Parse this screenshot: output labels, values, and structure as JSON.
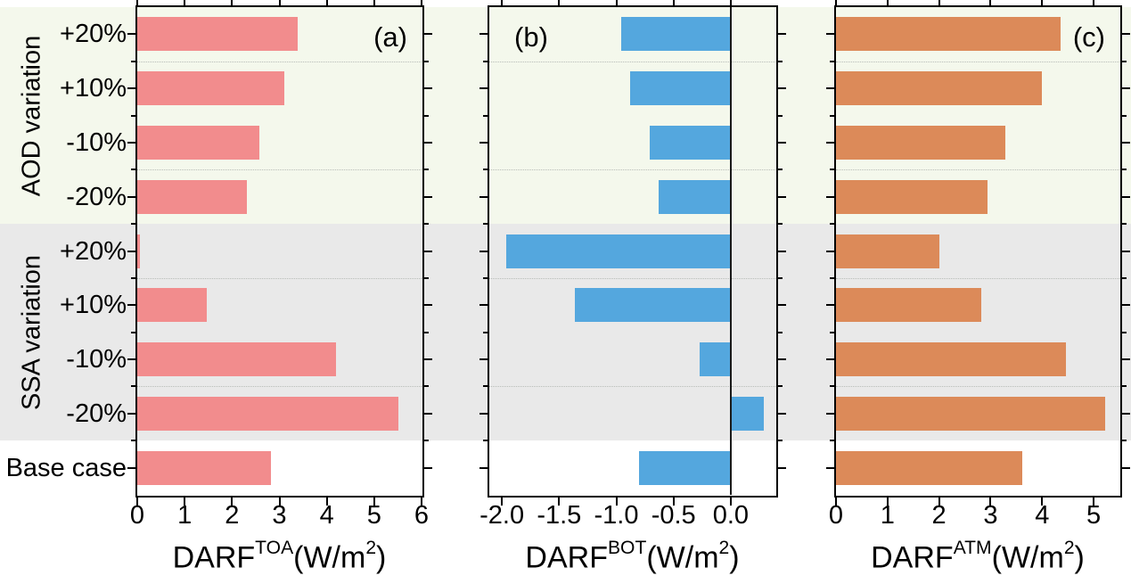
{
  "figure": {
    "background": "#ffffff",
    "axis_color": "#000000",
    "grid_color": "#b8bcb8"
  },
  "layout": {
    "group_bands": [
      {
        "label": "AOD variation",
        "rows": [
          0,
          3
        ],
        "bg": "#f4f8ec"
      },
      {
        "label": "SSA variation",
        "rows": [
          4,
          7
        ],
        "bg": "#e9e9e9"
      },
      {
        "label": "",
        "rows": [
          8,
          8
        ],
        "bg": "#ffffff"
      }
    ],
    "dotted_grid_row_boundaries": [
      1,
      3,
      5,
      7
    ]
  },
  "chart_data": [
    {
      "type": "bar",
      "orientation": "horizontal",
      "panel": "a",
      "panel_label": "(a)",
      "label_corner": "top-right",
      "xlabel_plain": "DARF TOA (W/m2)",
      "xlabel_rich": [
        {
          "t": "DARF"
        },
        {
          "t": "TOA",
          "sup": true
        },
        {
          "t": "(W/m"
        },
        {
          "t": "2",
          "sup": true
        },
        {
          "t": ")"
        }
      ],
      "xlim": [
        0,
        6
      ],
      "xticks": [
        {
          "v": 0,
          "label": "0"
        },
        {
          "v": 1,
          "label": "1"
        },
        {
          "v": 2,
          "label": "2"
        },
        {
          "v": 3,
          "label": "3"
        },
        {
          "v": 4,
          "label": "4"
        },
        {
          "v": 5,
          "label": "5"
        },
        {
          "v": 6,
          "label": "6"
        }
      ],
      "categories": [
        "+20%",
        "+10%",
        "-10%",
        "-20%",
        "+20%",
        "+10%",
        "-10%",
        "-20%",
        "Base case"
      ],
      "values": [
        3.38,
        3.11,
        2.57,
        2.31,
        0.05,
        1.46,
        4.2,
        5.52,
        2.82
      ],
      "bar_color": "#f28c8d",
      "zero_line": false
    },
    {
      "type": "bar",
      "orientation": "horizontal",
      "panel": "b",
      "panel_label": "(b)",
      "label_corner": "top-left",
      "xlabel_plain": "DARF BOT (W/m2)",
      "xlabel_rich": [
        {
          "t": "DARF"
        },
        {
          "t": "BOT",
          "sup": true
        },
        {
          "t": "(W/m"
        },
        {
          "t": "2",
          "sup": true
        },
        {
          "t": ")"
        }
      ],
      "xlim": [
        -2.11,
        0.39
      ],
      "xticks": [
        {
          "v": -2.0,
          "label": "-2.0"
        },
        {
          "v": -1.5,
          "label": "-1.5"
        },
        {
          "v": -1.0,
          "label": "-1.0"
        },
        {
          "v": -0.5,
          "label": "-0.5"
        },
        {
          "v": 0.0,
          "label": "0.0"
        }
      ],
      "categories": [
        "+20%",
        "+10%",
        "-10%",
        "-20%",
        "+20%",
        "+10%",
        "-10%",
        "-20%",
        "Base case"
      ],
      "values": [
        -0.96,
        -0.88,
        -0.71,
        -0.63,
        -1.96,
        -1.36,
        -0.27,
        0.29,
        -0.8
      ],
      "bar_color": "#54a7de",
      "zero_line": true
    },
    {
      "type": "bar",
      "orientation": "horizontal",
      "panel": "c",
      "panel_label": "(c)",
      "label_corner": "top-right",
      "xlabel_plain": "DARF ATM (W/m2)",
      "xlabel_rich": [
        {
          "t": "DARF"
        },
        {
          "t": "ATM",
          "sup": true
        },
        {
          "t": "(W/m"
        },
        {
          "t": "2",
          "sup": true
        },
        {
          "t": ")"
        }
      ],
      "xlim": [
        0,
        5.5
      ],
      "xticks": [
        {
          "v": 0,
          "label": "0"
        },
        {
          "v": 1,
          "label": "1"
        },
        {
          "v": 2,
          "label": "2"
        },
        {
          "v": 3,
          "label": "3"
        },
        {
          "v": 4,
          "label": "4"
        },
        {
          "v": 5,
          "label": "5"
        }
      ],
      "categories": [
        "+20%",
        "+10%",
        "-10%",
        "-20%",
        "+20%",
        "+10%",
        "-10%",
        "-20%",
        "Base case"
      ],
      "values": [
        4.35,
        4.0,
        3.29,
        2.94,
        2.01,
        2.82,
        4.47,
        5.23,
        3.62
      ],
      "bar_color": "#dc8a59",
      "zero_line": false
    }
  ]
}
